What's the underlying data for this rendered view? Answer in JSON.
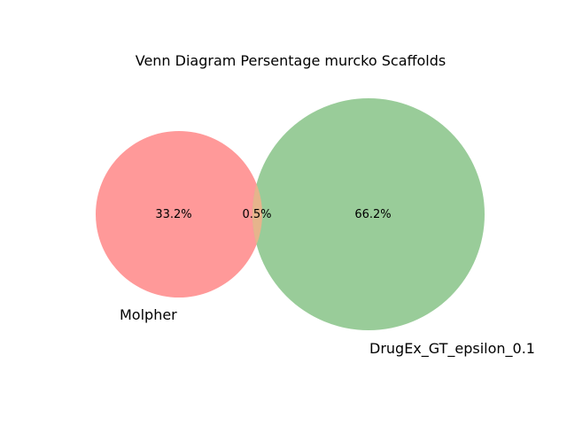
{
  "title": "Venn Diagram Persentage murcko Scaffolds",
  "sets": [
    {
      "name": "Molpher",
      "color": "#ff9999"
    },
    {
      "name": "DrugEx_GT_epsilon_0.1",
      "color": "#99cc99"
    }
  ],
  "overlap_color": "#e6b48c",
  "regions": {
    "left_only": "33.2%",
    "overlap": "0.5%",
    "right_only": "66.2%"
  }
}
